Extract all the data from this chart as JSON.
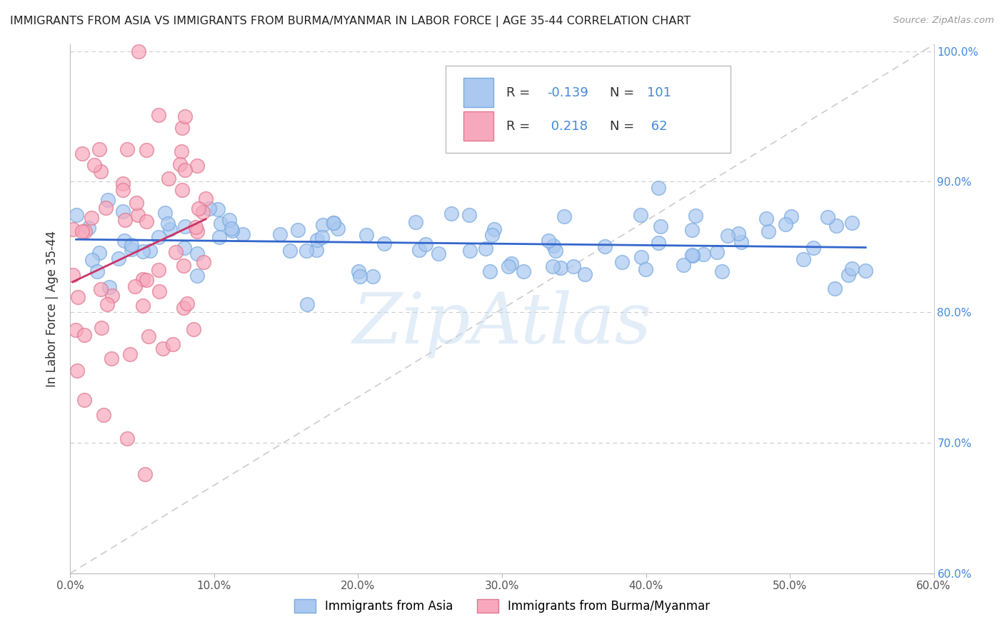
{
  "title": "IMMIGRANTS FROM ASIA VS IMMIGRANTS FROM BURMA/MYANMAR IN LABOR FORCE | AGE 35-44 CORRELATION CHART",
  "source": "Source: ZipAtlas.com",
  "ylabel": "In Labor Force | Age 35-44",
  "xlim": [
    0.0,
    0.6
  ],
  "ylim": [
    0.6,
    1.005
  ],
  "xticks": [
    0.0,
    0.1,
    0.2,
    0.3,
    0.4,
    0.5,
    0.6
  ],
  "xticklabels": [
    "0.0%",
    "10.0%",
    "20.0%",
    "30.0%",
    "40.0%",
    "50.0%",
    "60.0%"
  ],
  "yticks": [
    0.6,
    0.7,
    0.8,
    0.9,
    1.0
  ],
  "yticklabels": [
    "60.0%",
    "70.0%",
    "80.0%",
    "90.0%",
    "100.0%"
  ],
  "asia_color": "#aac8f0",
  "asia_edge": "#7aaae0",
  "burma_color": "#f8a8bc",
  "burma_edge": "#e07890",
  "trend_asia_color": "#3366cc",
  "trend_burma_color": "#cc3366",
  "tick_color": "#4488dd",
  "R_asia": -0.139,
  "N_asia": 101,
  "R_burma": 0.218,
  "N_burma": 62,
  "watermark": "ZipAtlas",
  "watermark_color": "#c0d8f0"
}
